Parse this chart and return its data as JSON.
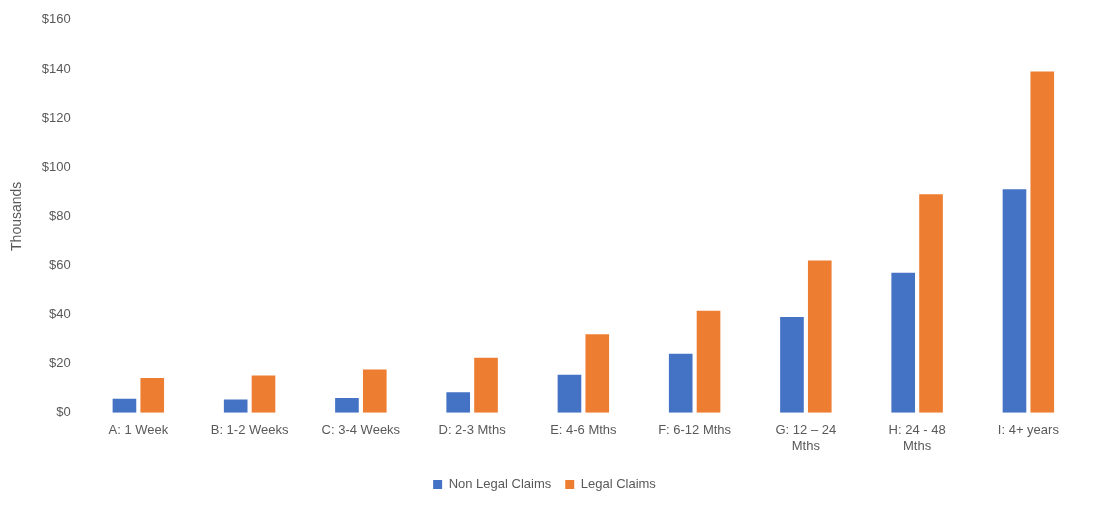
{
  "chart_data": {
    "type": "bar",
    "ylabel": "Thousands",
    "categories": [
      "A: 1 Week",
      "B: 1-2 Weeks",
      "C: 3-4 Weeks",
      "D: 2-3 Mths",
      "E: 4-6 Mths",
      "F: 6-12 Mths",
      "G: 12 – 24 Mths",
      "H: 24 - 48 Mths",
      "I: 4+ years"
    ],
    "series": [
      {
        "name": "Non Legal Claims",
        "color": "#4472c4",
        "values": [
          5.7,
          5.4,
          6,
          8.4,
          15.5,
          24,
          39,
          57,
          91
        ]
      },
      {
        "name": "Legal Claims",
        "color": "#ed7d31",
        "values": [
          14.2,
          15.2,
          17.6,
          22.4,
          32,
          41.5,
          62,
          89,
          139
        ]
      }
    ],
    "ylim": [
      0,
      160
    ],
    "yticks": [
      {
        "value": 0,
        "label": "$0"
      },
      {
        "value": 20,
        "label": "$20"
      },
      {
        "value": 40,
        "label": "$40"
      },
      {
        "value": 60,
        "label": "$60"
      },
      {
        "value": 80,
        "label": "$80"
      },
      {
        "value": 100,
        "label": "$100"
      },
      {
        "value": 120,
        "label": "$120"
      },
      {
        "value": 140,
        "label": "$140"
      },
      {
        "value": 160,
        "label": "$160"
      }
    ],
    "grid": false,
    "legend": "bottom"
  }
}
